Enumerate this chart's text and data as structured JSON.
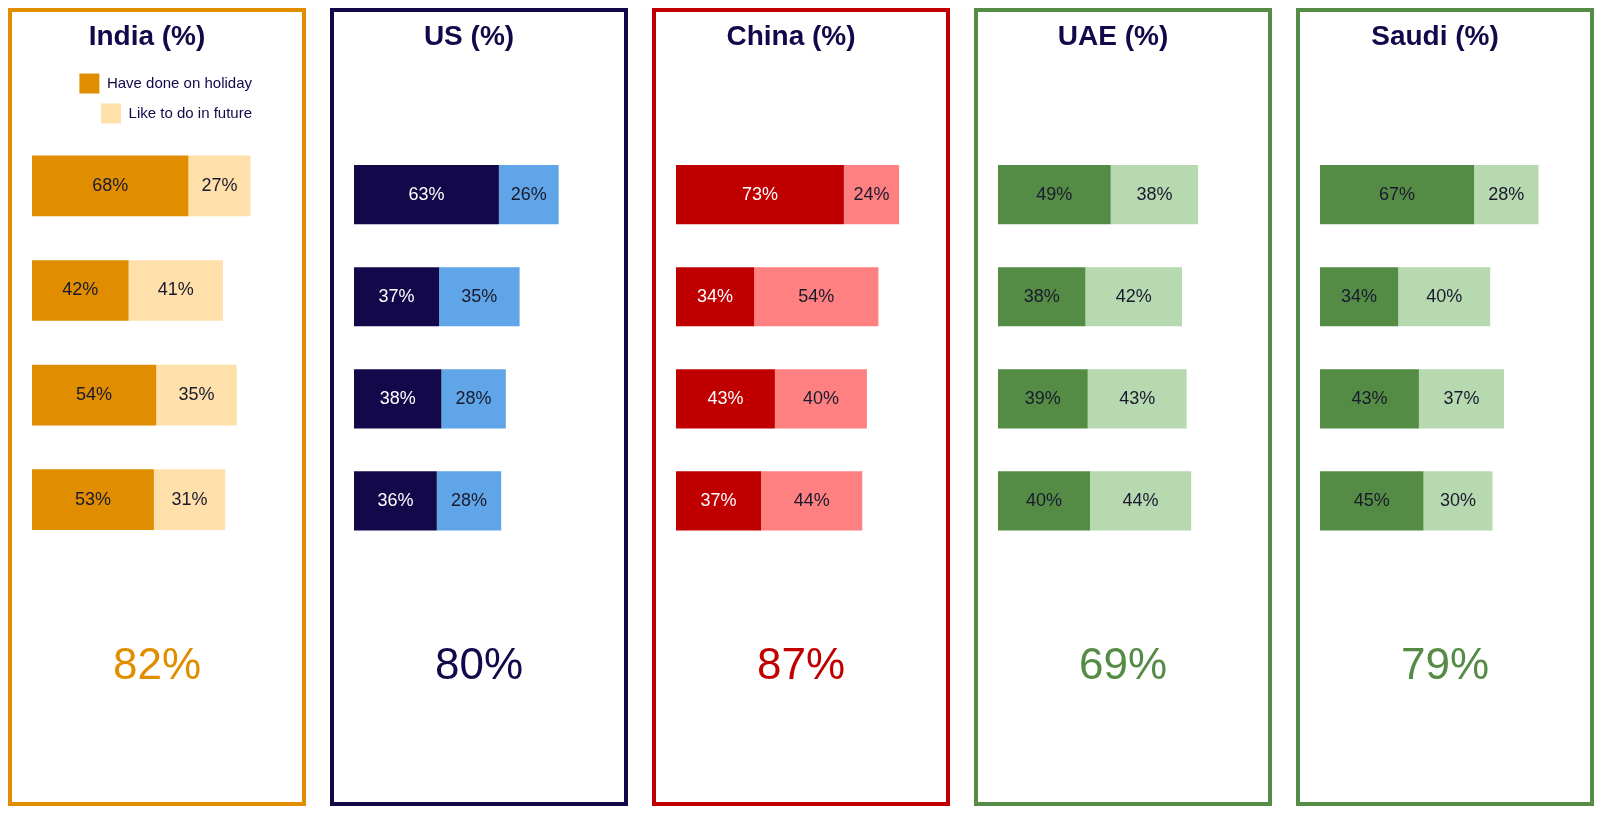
{
  "chart_data": [
    {
      "type": "bar",
      "orientation": "horizontal",
      "stacked": true,
      "title": "India (%)",
      "categories": [
        null,
        null,
        null,
        null
      ],
      "legend": "top right",
      "annotations": [
        "82%"
      ],
      "series": [
        {
          "name": "Have done on holiday",
          "color": "#e08e00",
          "values": [
            68,
            42,
            54,
            53
          ],
          "value_labels": [
            "68%",
            "42%",
            "54%",
            "53%"
          ]
        },
        {
          "name": "Like to do in future",
          "color": "#ffe0aa",
          "values": [
            27,
            41,
            35,
            31
          ],
          "value_labels": [
            "27%",
            "41%",
            "35%",
            "31%"
          ]
        }
      ]
    },
    {
      "type": "bar",
      "orientation": "horizontal",
      "stacked": true,
      "title": "US (%)",
      "categories": [
        null,
        null,
        null,
        null
      ],
      "annotations": [
        "80%"
      ],
      "series": [
        {
          "color": "#12084a",
          "values": [
            63,
            37,
            38,
            36
          ],
          "value_labels": [
            "63%",
            "37%",
            "38%",
            "36%"
          ]
        },
        {
          "color": "#5fa5e8",
          "values": [
            26,
            35,
            28,
            28
          ],
          "value_labels": [
            "26%",
            "35%",
            "28%",
            "28%"
          ]
        }
      ]
    },
    {
      "type": "bar",
      "orientation": "horizontal",
      "stacked": true,
      "title": "China (%)",
      "categories": [
        null,
        null,
        null,
        null
      ],
      "annotations": [
        "87%"
      ],
      "series": [
        {
          "color": "#c00000",
          "values": [
            73,
            34,
            43,
            37
          ],
          "value_labels": [
            "73%",
            "34%",
            "43%",
            "37%"
          ]
        },
        {
          "color": "#ff8080",
          "values": [
            24,
            54,
            40,
            44
          ],
          "value_labels": [
            "24%",
            "54%",
            "40%",
            "44%"
          ]
        }
      ]
    },
    {
      "type": "bar",
      "orientation": "horizontal",
      "stacked": true,
      "title": "UAE (%)",
      "categories": [
        null,
        null,
        null,
        null
      ],
      "annotations": [
        "69%"
      ],
      "series": [
        {
          "color": "#548c45",
          "values": [
            49,
            38,
            39,
            40
          ],
          "value_labels": [
            "49%",
            "38%",
            "39%",
            "40%"
          ]
        },
        {
          "color": "#b6d9b0",
          "values": [
            38,
            42,
            43,
            44
          ],
          "value_labels": [
            "38%",
            "42%",
            "43%",
            "44%"
          ]
        }
      ]
    },
    {
      "type": "bar",
      "orientation": "horizontal",
      "stacked": true,
      "title": "Saudi (%)",
      "categories": [
        null,
        null,
        null,
        null
      ],
      "annotations": [
        "79%"
      ],
      "series": [
        {
          "color": "#548c45",
          "values": [
            67,
            34,
            43,
            45
          ],
          "value_labels": [
            "67%",
            "34%",
            "43%",
            "45%"
          ]
        },
        {
          "color": "#b6d9b0",
          "values": [
            28,
            40,
            37,
            30
          ],
          "value_labels": [
            "28%",
            "40%",
            "37%",
            "30%"
          ]
        }
      ]
    }
  ]
}
